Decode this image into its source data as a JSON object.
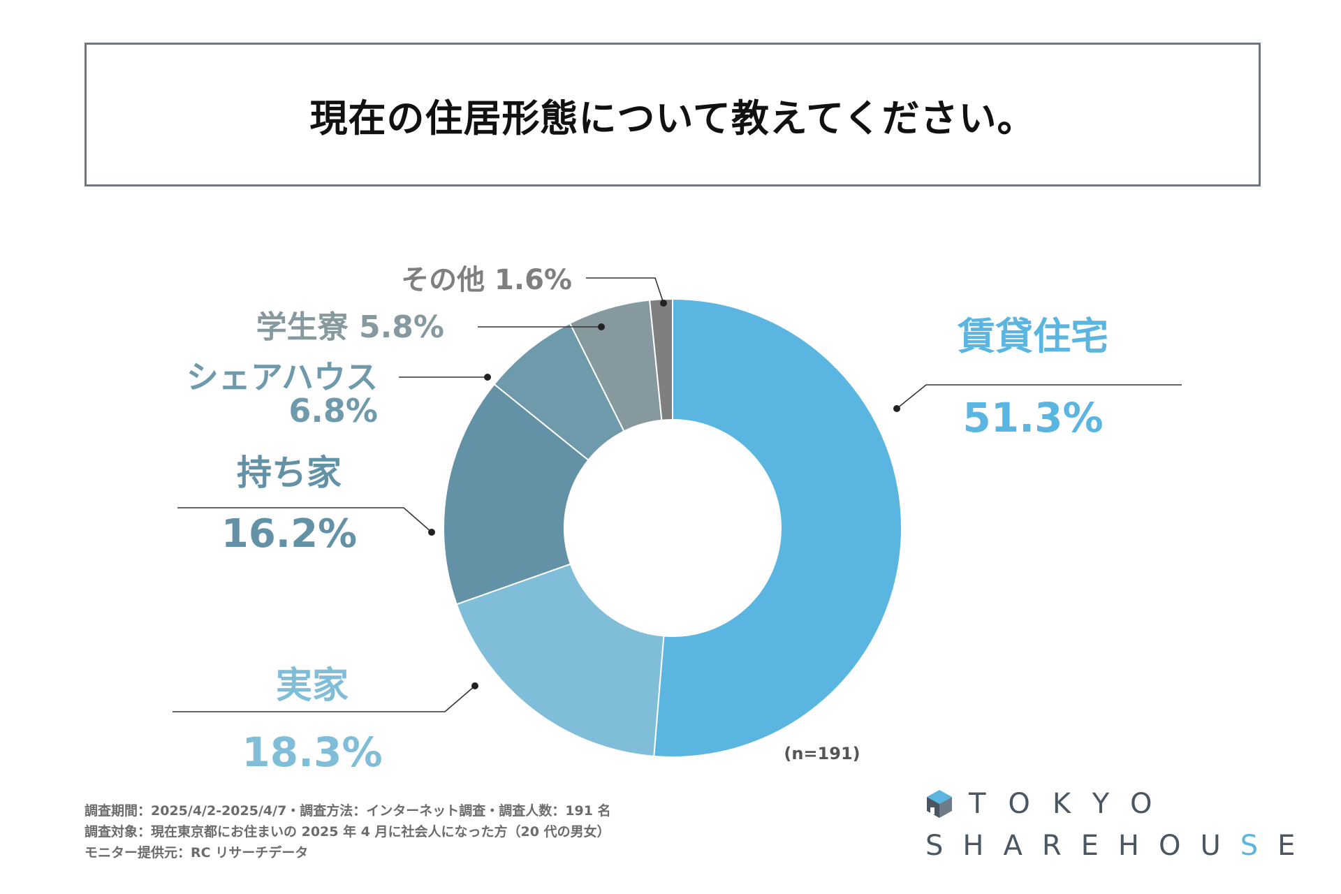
{
  "title": "現在の住居形態について教えてください。",
  "chart_data": {
    "type": "pie",
    "title": "現在の住居形態について教えてください。",
    "sample_note": "(n=191)",
    "slices": [
      {
        "label": "賃貸住宅",
        "value": 51.3,
        "value_text": "51.3%",
        "color": "#5ab6e1",
        "label_color": "#5ab6e1"
      },
      {
        "label": "実家",
        "value": 18.3,
        "value_text": "18.3%",
        "color": "#80bdd9",
        "label_color": "#80bdd9"
      },
      {
        "label": "持ち家",
        "value": 16.2,
        "value_text": "16.2%",
        "color": "#6392a7",
        "label_color": "#6392a7"
      },
      {
        "label": "シェアハウス",
        "value": 6.8,
        "value_text": "6.8%",
        "color": "#6e9aac",
        "label_color": "#6e9aac"
      },
      {
        "label": "学生寮",
        "value": 5.8,
        "value_text": "5.8%",
        "color": "#86999f",
        "label_color": "#86999f"
      },
      {
        "label": "その他",
        "value": 1.6,
        "value_text": "1.6%",
        "color": "#7f7f7f",
        "label_color": "#7f7f7f"
      }
    ]
  },
  "footnotes": [
    "調査期間：2025/4/2-2025/4/7・調査方法：インターネット調査・調査人数：191 名",
    "調査対象：現在東京都にお住まいの 2025 年 4 月に社会人になった方（20 代の男女）",
    "モニター提供元：RC リサーチデータ"
  ],
  "logo": {
    "line1": "TOKYO",
    "line2_part1": "SHAREHOU",
    "line2_accent": "S",
    "line2_part2": "E"
  }
}
